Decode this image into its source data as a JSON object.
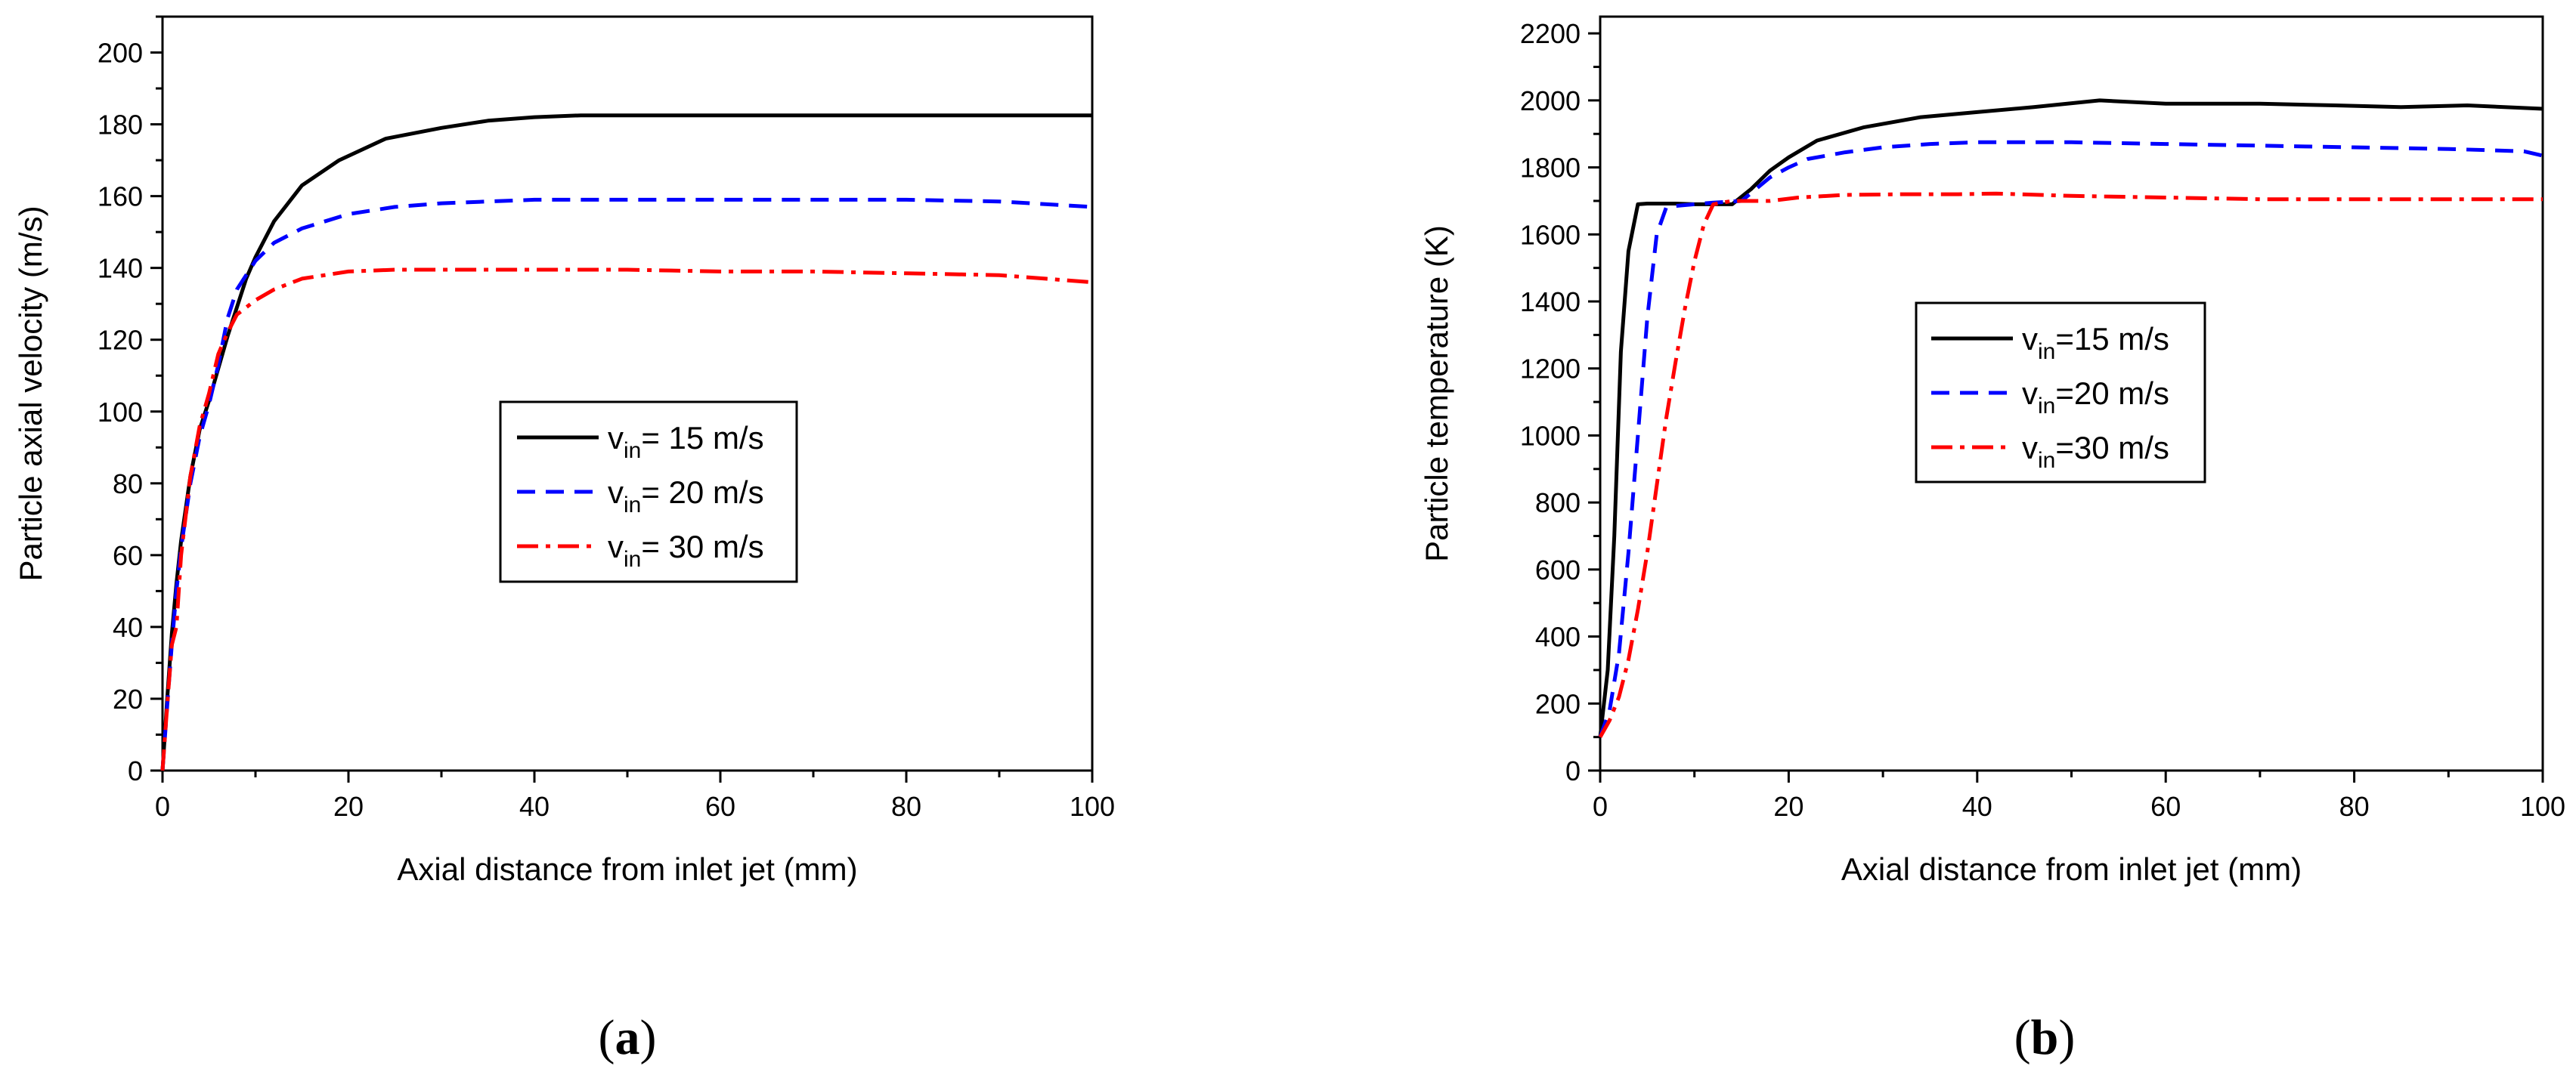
{
  "chart_data": [
    {
      "type": "line",
      "panel": "a",
      "xlabel": "Axial distance from inlet jet (mm)",
      "ylabel": "Particle axial velocity (m/s)",
      "xlim": [
        0,
        100
      ],
      "ylim": [
        0,
        210
      ],
      "xticks": [
        0,
        20,
        40,
        60,
        80,
        100
      ],
      "yticks": [
        0,
        20,
        40,
        60,
        80,
        100,
        120,
        140,
        160,
        180,
        200
      ],
      "legend_position": "center",
      "series": [
        {
          "name_main": "v",
          "name_sub": "in",
          "name_rest": "= 15 m/s",
          "color": "#000000",
          "dash": "solid",
          "x": [
            0,
            0.5,
            1,
            1.5,
            2,
            3,
            4,
            5,
            6,
            7,
            8,
            9,
            10,
            12,
            15,
            19,
            24,
            30,
            35,
            40,
            45,
            50,
            60,
            70,
            80,
            90,
            100
          ],
          "y": [
            0,
            20,
            38,
            52,
            64,
            82,
            95,
            103,
            112,
            121,
            129,
            137,
            143,
            153,
            163,
            170,
            176,
            179,
            181,
            182,
            182.5,
            182.5,
            182.5,
            182.5,
            182.5,
            182.5,
            182.5
          ]
        },
        {
          "name_main": "v",
          "name_sub": "in",
          "name_rest": "= 20 m/s",
          "color": "#0000ff",
          "dash": "24,14",
          "x": [
            0,
            0.5,
            1,
            1.5,
            2,
            3,
            4,
            5,
            6,
            7,
            8,
            9,
            10,
            12,
            15,
            20,
            25,
            30,
            35,
            40,
            50,
            60,
            70,
            80,
            90,
            100
          ],
          "y": [
            0,
            18,
            35,
            50,
            62,
            80,
            93,
            102,
            113,
            126,
            134,
            138,
            142,
            147,
            151,
            155,
            157,
            158,
            158.5,
            159,
            159,
            159,
            159,
            159,
            158.5,
            157
          ]
        },
        {
          "name_main": "v",
          "name_sub": "in",
          "name_rest": "= 30 m/s",
          "color": "#ff0000",
          "dash": "28,10,6,10",
          "x": [
            0,
            0.5,
            1,
            1.5,
            2,
            3,
            4,
            5,
            6,
            7,
            8,
            9,
            10,
            12,
            15,
            20,
            25,
            30,
            40,
            50,
            60,
            70,
            80,
            90,
            95,
            100
          ],
          "y": [
            0,
            18,
            35,
            40,
            60,
            82,
            96,
            105,
            116,
            122,
            127,
            129,
            131,
            134,
            137,
            139,
            139.5,
            139.5,
            139.5,
            139.5,
            139,
            139,
            138.5,
            138,
            137,
            136
          ]
        }
      ]
    },
    {
      "type": "line",
      "panel": "b",
      "xlabel": "Axial distance from inlet jet (mm)",
      "ylabel": "Particle temperature (K)",
      "xlim": [
        0,
        100
      ],
      "ylim": [
        0,
        2250
      ],
      "xticks": [
        0,
        20,
        40,
        60,
        80,
        100
      ],
      "yticks": [
        0,
        200,
        400,
        600,
        800,
        1000,
        1200,
        1400,
        1600,
        1800,
        2000,
        2200
      ],
      "legend_position": "upper-left-center",
      "series": [
        {
          "name_main": "v",
          "name_sub": "in",
          "name_rest": "=15 m/s",
          "color": "#000000",
          "dash": "solid",
          "x": [
            0,
            0.8,
            1.5,
            2.2,
            3,
            4,
            5,
            8,
            10,
            12,
            14,
            16,
            18,
            20,
            23,
            28,
            34,
            40,
            46,
            53,
            60,
            70,
            78,
            85,
            92,
            100
          ],
          "y": [
            100,
            300,
            700,
            1250,
            1550,
            1690,
            1692,
            1692,
            1690,
            1690,
            1690,
            1735,
            1790,
            1830,
            1880,
            1920,
            1950,
            1965,
            1980,
            2000,
            1990,
            1990,
            1985,
            1980,
            1985,
            1975
          ]
        },
        {
          "name_main": "v",
          "name_sub": "in",
          "name_rest": "=20 m/s",
          "color": "#0000ff",
          "dash": "24,14",
          "x": [
            0,
            1,
            2,
            3,
            4,
            5,
            6,
            7,
            8,
            10,
            12,
            15,
            18,
            20,
            22,
            26,
            30,
            35,
            40,
            50,
            60,
            70,
            80,
            90,
            98,
            100
          ],
          "y": [
            100,
            180,
            350,
            650,
            1000,
            1350,
            1600,
            1680,
            1685,
            1690,
            1695,
            1700,
            1770,
            1800,
            1825,
            1845,
            1860,
            1870,
            1875,
            1875,
            1870,
            1865,
            1860,
            1855,
            1848,
            1835
          ]
        },
        {
          "name_main": "v",
          "name_sub": "in",
          "name_rest": "=30 m/s",
          "color": "#ff0000",
          "dash": "28,10,6,10",
          "x": [
            0,
            1,
            2,
            3,
            4,
            5,
            6,
            7,
            8,
            9,
            10,
            11,
            12,
            14,
            18,
            21,
            26,
            32,
            38,
            42,
            50,
            60,
            70,
            80,
            90,
            100
          ],
          "y": [
            100,
            150,
            220,
            330,
            480,
            650,
            850,
            1050,
            1220,
            1380,
            1520,
            1630,
            1690,
            1700,
            1700,
            1710,
            1718,
            1720,
            1720,
            1722,
            1715,
            1710,
            1705,
            1705,
            1705,
            1705
          ]
        }
      ]
    }
  ],
  "panel_labels": [
    {
      "open": "(",
      "letter": "a",
      "close": ")"
    },
    {
      "open": "(",
      "letter": "b",
      "close": ")"
    }
  ]
}
